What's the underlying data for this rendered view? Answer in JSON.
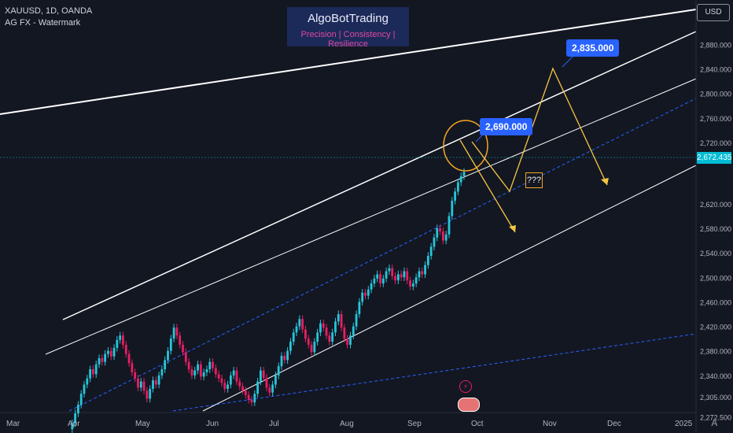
{
  "header": {
    "symbol": "XAUUSD, 1D, OANDA",
    "subtitle": "AG FX - Watermark"
  },
  "brand": {
    "title": "AlgoBotTrading",
    "tagline": "Precision  | Consistency | Resilience"
  },
  "currency_button": "USD",
  "callouts": {
    "target_high": "2,835.000",
    "target_mid": "2,690.000",
    "question": "???"
  },
  "current_price": "2,672.435",
  "colors": {
    "background": "#131722",
    "up_candle": "#26c6da",
    "down_candle": "#e91e63",
    "channel": "#ffffff",
    "projection": "#f5c542",
    "dashed": "#2962ff",
    "callout": "#2962ff",
    "circle": "#f5a623"
  },
  "chart_data": {
    "type": "candlestick",
    "title": "XAUUSD, 1D, OANDA",
    "x_tick_labels": [
      "Mar",
      "Apr",
      "May",
      "Jun",
      "Jul",
      "Aug",
      "Sep",
      "Oct",
      "Nov",
      "Dec",
      "2025"
    ],
    "y_tick_labels": [
      "2,880.000",
      "2,840.000",
      "2,800.000",
      "2,760.000",
      "2,720.000",
      "2,620.000",
      "2,580.000",
      "2,540.000",
      "2,500.000",
      "2,460.000",
      "2,420.000",
      "2,380.000",
      "2,340.000",
      "2,305.000",
      "2,272.500"
    ],
    "ylim": [
      2255,
      2905
    ],
    "close_series": [
      2252,
      2262,
      2278,
      2292,
      2310,
      2325,
      2335,
      2350,
      2342,
      2358,
      2368,
      2362,
      2375,
      2380,
      2371,
      2385,
      2398,
      2405,
      2390,
      2375,
      2360,
      2345,
      2335,
      2320,
      2330,
      2315,
      2302,
      2318,
      2332,
      2325,
      2340,
      2350,
      2365,
      2380,
      2400,
      2418,
      2405,
      2390,
      2378,
      2362,
      2350,
      2340,
      2348,
      2358,
      2338,
      2345,
      2350,
      2362,
      2352,
      2342,
      2335,
      2328,
      2318,
      2325,
      2340,
      2348,
      2330,
      2322,
      2315,
      2308,
      2300,
      2296,
      2310,
      2330,
      2348,
      2336,
      2320,
      2312,
      2325,
      2340,
      2355,
      2372,
      2365,
      2380,
      2395,
      2410,
      2420,
      2432,
      2415,
      2400,
      2390,
      2378,
      2395,
      2410,
      2425,
      2418,
      2405,
      2395,
      2410,
      2428,
      2440,
      2418,
      2400,
      2390,
      2405,
      2420,
      2440,
      2460,
      2475,
      2470,
      2480,
      2490,
      2498,
      2505,
      2490,
      2498,
      2510,
      2515,
      2502,
      2495,
      2505,
      2500,
      2510,
      2495,
      2485,
      2490,
      2500,
      2510,
      2505,
      2520,
      2535,
      2550,
      2565,
      2580,
      2575,
      2560,
      2570,
      2600,
      2625,
      2640,
      2655,
      2665,
      2672
    ],
    "annotations": [
      "2,835.000",
      "2,690.000",
      "???"
    ],
    "notes": "Rising channel (white), dashed mid-line (blue), projected zig-zag paths (yellow), circled breakout zone (orange)"
  }
}
